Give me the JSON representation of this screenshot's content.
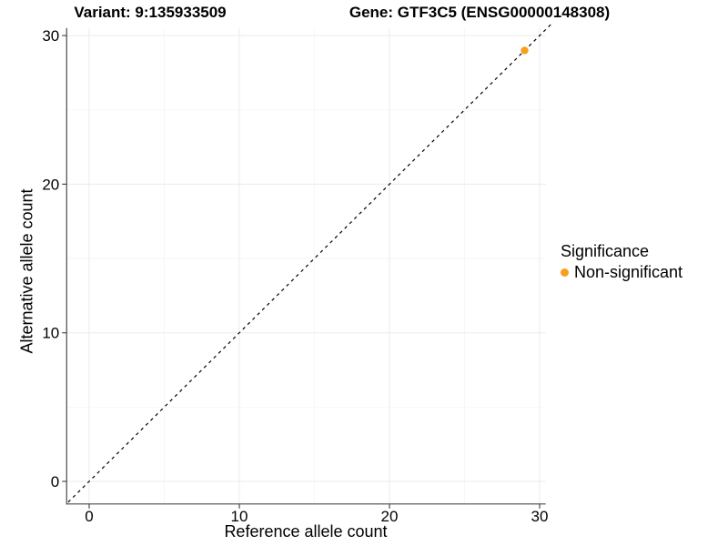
{
  "chart_data": {
    "type": "scatter",
    "title_left": "Variant: 9:135933509",
    "title_right": "Gene: GTF3C5 (ENSG00000148308)",
    "xlabel": "Reference allele count",
    "ylabel": "Alternative allele count",
    "x_ticks": [
      0,
      10,
      20,
      30
    ],
    "y_ticks": [
      0,
      10,
      20,
      30
    ],
    "x_minor_ticks": [
      5,
      15,
      25
    ],
    "y_minor_ticks": [
      5,
      15,
      25
    ],
    "xlim": [
      -1.5,
      30.4
    ],
    "ylim": [
      -1.52,
      30.5
    ],
    "grid": "major+minor",
    "identity_line": {
      "slope": 1,
      "intercept": 0,
      "style": "dashed",
      "range": [
        -1.4,
        30.8
      ]
    },
    "series": [
      {
        "name": "Non-significant",
        "color": "#FA9E1E",
        "points": [
          {
            "x": 29,
            "y": 29
          }
        ]
      }
    ],
    "legend": {
      "title": "Significance",
      "position": "right",
      "items": [
        {
          "label": "Non-significant",
          "color": "#FA9E1E"
        }
      ]
    },
    "colors": {
      "point": "#FA9E1E",
      "grid_major": "#EBEBEB",
      "grid_minor": "#F5F5F5",
      "axis_line": "#4A4A4A",
      "identity_line": "#000000",
      "text": "#000000"
    }
  }
}
